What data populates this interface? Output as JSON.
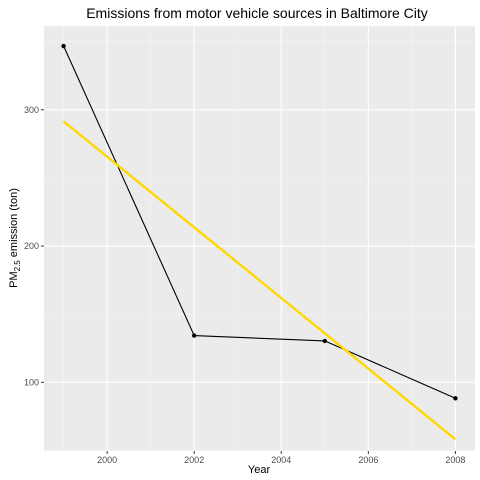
{
  "chart_data": {
    "type": "line",
    "title": "Emissions from motor vehicle sources in Baltimore City",
    "xlabel": "Year",
    "ylabel": {
      "main": "PM",
      "subscript": "2.5",
      "suffix": " emission (ton)"
    },
    "x": [
      1999,
      2002,
      2005,
      2008
    ],
    "series": [
      {
        "values": [
          346.8,
          134.3,
          130.4,
          88.3
        ],
        "color": "#000000",
        "marker": "point"
      }
    ],
    "trend_line": {
      "method": "linear",
      "color": "#FFD700",
      "from": {
        "x": 1999,
        "y": 291.5
      },
      "to": {
        "x": 2008,
        "y": 58.2
      }
    },
    "x_ticks": [
      2000,
      2002,
      2004,
      2006,
      2008
    ],
    "y_ticks": [
      100,
      200,
      300
    ],
    "xlim": [
      1998.55,
      2008.45
    ],
    "ylim": [
      49.6,
      361.5
    ],
    "grid": true,
    "panel_background": "#EBEBEB"
  }
}
